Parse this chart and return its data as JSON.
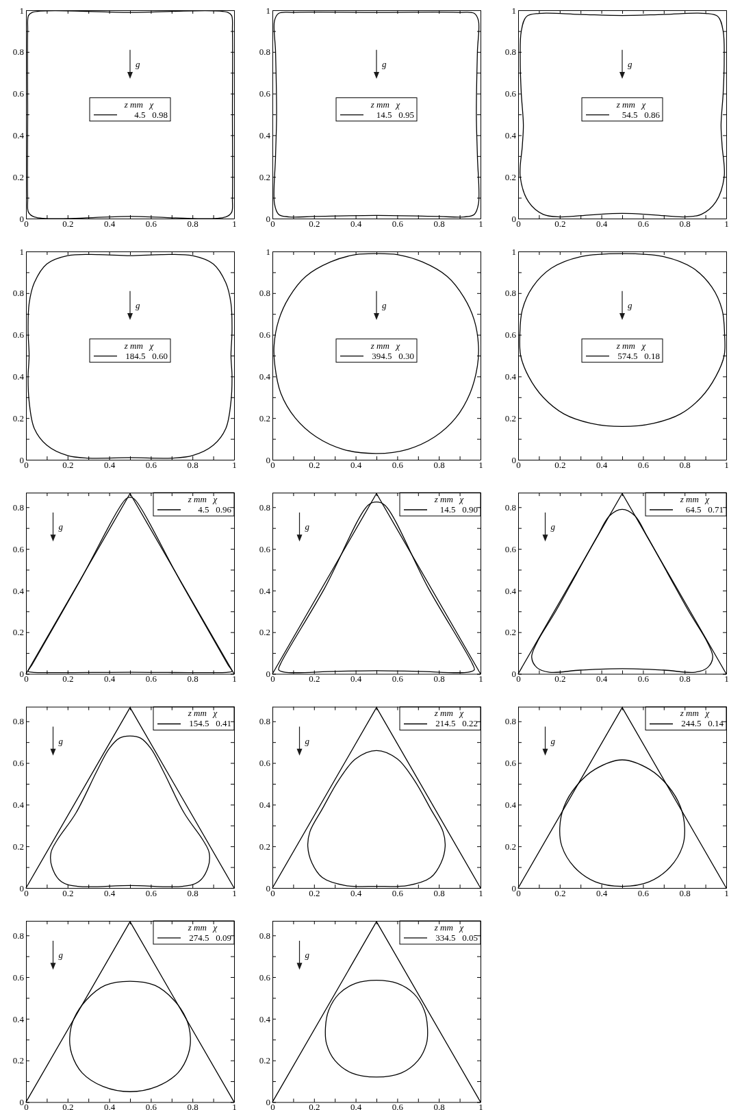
{
  "chart_data": [
    {
      "type": "line",
      "xlim": [
        0,
        1
      ],
      "ylim": [
        0,
        1
      ],
      "xticks": [
        0,
        {
          "value": 0.1,
          "label": null
        },
        0.2,
        {
          "value": 0.3,
          "label": null
        },
        0.4,
        {
          "value": 0.5,
          "label": null
        },
        0.6,
        {
          "value": 0.7,
          "label": null
        },
        0.8,
        {
          "value": 0.9,
          "label": null
        },
        1
      ],
      "yticks": [
        0,
        {
          "value": 0.1,
          "label": null
        },
        0.2,
        {
          "value": 0.3,
          "label": null
        },
        0.4,
        {
          "value": 0.5,
          "label": null
        },
        0.6,
        {
          "value": 0.7,
          "label": null
        },
        0.8,
        {
          "value": 0.9,
          "label": null
        },
        1
      ],
      "annotations": [
        "g",
        "z mm   χ",
        "4.5   0.98"
      ]
    },
    {
      "type": "line",
      "xlim": [
        0,
        1
      ],
      "ylim": [
        0,
        1
      ],
      "xticks": [
        0,
        {
          "value": 0.1,
          "label": null
        },
        0.2,
        {
          "value": 0.3,
          "label": null
        },
        0.4,
        {
          "value": 0.5,
          "label": null
        },
        0.6,
        {
          "value": 0.7,
          "label": null
        },
        0.8,
        {
          "value": 0.9,
          "label": null
        },
        1
      ],
      "yticks": [
        0,
        {
          "value": 0.1,
          "label": null
        },
        0.2,
        {
          "value": 0.3,
          "label": null
        },
        0.4,
        {
          "value": 0.5,
          "label": null
        },
        0.6,
        {
          "value": 0.7,
          "label": null
        },
        0.8,
        {
          "value": 0.9,
          "label": null
        },
        1
      ],
      "annotations": [
        "g",
        "z mm   χ",
        "14.5   0.95"
      ]
    },
    {
      "type": "line",
      "xlim": [
        0,
        1
      ],
      "ylim": [
        0,
        1
      ],
      "xticks": [
        0,
        {
          "value": 0.1,
          "label": null
        },
        0.2,
        {
          "value": 0.3,
          "label": null
        },
        0.4,
        {
          "value": 0.5,
          "label": null
        },
        0.6,
        {
          "value": 0.7,
          "label": null
        },
        0.8,
        {
          "value": 0.9,
          "label": null
        },
        1
      ],
      "yticks": [
        0,
        {
          "value": 0.1,
          "label": null
        },
        0.2,
        {
          "value": 0.3,
          "label": null
        },
        0.4,
        {
          "value": 0.5,
          "label": null
        },
        0.6,
        {
          "value": 0.7,
          "label": null
        },
        0.8,
        {
          "value": 0.9,
          "label": null
        },
        1
      ],
      "annotations": [
        "g",
        "z mm   χ",
        "54.5   0.86"
      ]
    },
    {
      "type": "line",
      "xlim": [
        0,
        1
      ],
      "ylim": [
        0,
        1
      ],
      "xticks": [
        0,
        {
          "value": 0.1,
          "label": null
        },
        0.2,
        {
          "value": 0.3,
          "label": null
        },
        0.4,
        {
          "value": 0.5,
          "label": null
        },
        0.6,
        {
          "value": 0.7,
          "label": null
        },
        0.8,
        {
          "value": 0.9,
          "label": null
        },
        1
      ],
      "yticks": [
        0,
        {
          "value": 0.1,
          "label": null
        },
        0.2,
        {
          "value": 0.3,
          "label": null
        },
        0.4,
        {
          "value": 0.5,
          "label": null
        },
        0.6,
        {
          "value": 0.7,
          "label": null
        },
        0.8,
        {
          "value": 0.9,
          "label": null
        },
        1
      ],
      "annotations": [
        "g",
        "z mm   χ",
        "184.5   0.60"
      ]
    },
    {
      "type": "line",
      "xlim": [
        0,
        1
      ],
      "ylim": [
        0,
        1
      ],
      "xticks": [
        0,
        {
          "value": 0.1,
          "label": null
        },
        0.2,
        {
          "value": 0.3,
          "label": null
        },
        0.4,
        {
          "value": 0.5,
          "label": null
        },
        0.6,
        {
          "value": 0.7,
          "label": null
        },
        0.8,
        {
          "value": 0.9,
          "label": null
        },
        1
      ],
      "yticks": [
        0,
        {
          "value": 0.1,
          "label": null
        },
        0.2,
        {
          "value": 0.3,
          "label": null
        },
        0.4,
        {
          "value": 0.5,
          "label": null
        },
        0.6,
        {
          "value": 0.7,
          "label": null
        },
        0.8,
        {
          "value": 0.9,
          "label": null
        },
        1
      ],
      "annotations": [
        "g",
        "z mm   χ",
        "394.5   0.30"
      ]
    },
    {
      "type": "line",
      "xlim": [
        0,
        1
      ],
      "ylim": [
        0,
        1
      ],
      "xticks": [
        0,
        {
          "value": 0.1,
          "label": null
        },
        0.2,
        {
          "value": 0.3,
          "label": null
        },
        0.4,
        {
          "value": 0.5,
          "label": null
        },
        0.6,
        {
          "value": 0.7,
          "label": null
        },
        0.8,
        {
          "value": 0.9,
          "label": null
        },
        1
      ],
      "yticks": [
        0,
        {
          "value": 0.1,
          "label": null
        },
        0.2,
        {
          "value": 0.3,
          "label": null
        },
        0.4,
        {
          "value": 0.5,
          "label": null
        },
        0.6,
        {
          "value": 0.7,
          "label": null
        },
        0.8,
        {
          "value": 0.9,
          "label": null
        },
        1
      ],
      "annotations": [
        "g",
        "z mm   χ",
        "574.5   0.18"
      ]
    },
    {
      "type": "line",
      "xlim": [
        0,
        1
      ],
      "ylim": [
        0,
        0.87
      ],
      "xticks": [
        0,
        {
          "value": 0.1,
          "label": null
        },
        0.2,
        {
          "value": 0.3,
          "label": null
        },
        0.4,
        {
          "value": 0.5,
          "label": null
        },
        0.6,
        {
          "value": 0.7,
          "label": null
        },
        0.8,
        {
          "value": 0.9,
          "label": null
        },
        1
      ],
      "yticks": [
        0,
        {
          "value": 0.1,
          "label": null
        },
        0.2,
        {
          "value": 0.3,
          "label": null
        },
        0.4,
        {
          "value": 0.5,
          "label": null
        },
        0.6,
        {
          "value": 0.7,
          "label": null
        },
        0.8
      ],
      "annotations": [
        "g",
        "z mm   χ",
        "4.5   0.96"
      ],
      "series": [
        {
          "color": "#000000",
          "x": [
            0,
            0.5,
            1
          ],
          "values": [
            0,
            0.866,
            0
          ]
        }
      ]
    },
    {
      "type": "line",
      "xlim": [
        0,
        1
      ],
      "ylim": [
        0,
        0.87
      ],
      "xticks": [
        0,
        {
          "value": 0.1,
          "label": null
        },
        0.2,
        {
          "value": 0.3,
          "label": null
        },
        0.4,
        {
          "value": 0.5,
          "label": null
        },
        0.6,
        {
          "value": 0.7,
          "label": null
        },
        0.8,
        {
          "value": 0.9,
          "label": null
        },
        1
      ],
      "yticks": [
        0,
        {
          "value": 0.1,
          "label": null
        },
        0.2,
        {
          "value": 0.3,
          "label": null
        },
        0.4,
        {
          "value": 0.5,
          "label": null
        },
        0.6,
        {
          "value": 0.7,
          "label": null
        },
        0.8
      ],
      "annotations": [
        "g",
        "z mm   χ",
        "14.5   0.90"
      ],
      "series": [
        {
          "color": "#000000",
          "x": [
            0,
            0.5,
            1
          ],
          "values": [
            0,
            0.866,
            0
          ]
        }
      ]
    },
    {
      "type": "line",
      "xlim": [
        0,
        1
      ],
      "ylim": [
        0,
        0.87
      ],
      "xticks": [
        0,
        {
          "value": 0.1,
          "label": null
        },
        0.2,
        {
          "value": 0.3,
          "label": null
        },
        0.4,
        {
          "value": 0.5,
          "label": null
        },
        0.6,
        {
          "value": 0.7,
          "label": null
        },
        0.8,
        {
          "value": 0.9,
          "label": null
        },
        1
      ],
      "yticks": [
        0,
        {
          "value": 0.1,
          "label": null
        },
        0.2,
        {
          "value": 0.3,
          "label": null
        },
        0.4,
        {
          "value": 0.5,
          "label": null
        },
        0.6,
        {
          "value": 0.7,
          "label": null
        },
        0.8
      ],
      "annotations": [
        "g",
        "z mm   χ",
        "64.5   0.71"
      ],
      "series": [
        {
          "color": "#000000",
          "x": [
            0,
            0.5,
            1
          ],
          "values": [
            0,
            0.866,
            0
          ]
        }
      ]
    },
    {
      "type": "line",
      "xlim": [
        0,
        1
      ],
      "ylim": [
        0,
        0.87
      ],
      "xticks": [
        0,
        {
          "value": 0.1,
          "label": null
        },
        0.2,
        {
          "value": 0.3,
          "label": null
        },
        0.4,
        {
          "value": 0.5,
          "label": null
        },
        0.6,
        {
          "value": 0.7,
          "label": null
        },
        0.8,
        {
          "value": 0.9,
          "label": null
        },
        1
      ],
      "yticks": [
        0,
        {
          "value": 0.1,
          "label": null
        },
        0.2,
        {
          "value": 0.3,
          "label": null
        },
        0.4,
        {
          "value": 0.5,
          "label": null
        },
        0.6,
        {
          "value": 0.7,
          "label": null
        },
        0.8
      ],
      "annotations": [
        "g",
        "z mm   χ",
        "154.5   0.41"
      ],
      "series": [
        {
          "color": "#000000",
          "x": [
            0,
            0.5,
            1
          ],
          "values": [
            0,
            0.866,
            0
          ]
        }
      ]
    },
    {
      "type": "line",
      "xlim": [
        0,
        1
      ],
      "ylim": [
        0,
        0.87
      ],
      "xticks": [
        0,
        {
          "value": 0.1,
          "label": null
        },
        0.2,
        {
          "value": 0.3,
          "label": null
        },
        0.4,
        {
          "value": 0.5,
          "label": null
        },
        0.6,
        {
          "value": 0.7,
          "label": null
        },
        0.8,
        {
          "value": 0.9,
          "label": null
        },
        1
      ],
      "yticks": [
        0,
        {
          "value": 0.1,
          "label": null
        },
        0.2,
        {
          "value": 0.3,
          "label": null
        },
        0.4,
        {
          "value": 0.5,
          "label": null
        },
        0.6,
        {
          "value": 0.7,
          "label": null
        },
        0.8
      ],
      "annotations": [
        "g",
        "z mm   χ",
        "214.5   0.22"
      ],
      "series": [
        {
          "color": "#000000",
          "x": [
            0,
            0.5,
            1
          ],
          "values": [
            0,
            0.866,
            0
          ]
        }
      ]
    },
    {
      "type": "line",
      "xlim": [
        0,
        1
      ],
      "ylim": [
        0,
        0.87
      ],
      "xticks": [
        0,
        {
          "value": 0.1,
          "label": null
        },
        0.2,
        {
          "value": 0.3,
          "label": null
        },
        0.4,
        {
          "value": 0.5,
          "label": null
        },
        0.6,
        {
          "value": 0.7,
          "label": null
        },
        0.8,
        {
          "value": 0.9,
          "label": null
        },
        1
      ],
      "yticks": [
        0,
        {
          "value": 0.1,
          "label": null
        },
        0.2,
        {
          "value": 0.3,
          "label": null
        },
        0.4,
        {
          "value": 0.5,
          "label": null
        },
        0.6,
        {
          "value": 0.7,
          "label": null
        },
        0.8
      ],
      "annotations": [
        "g",
        "z mm   χ",
        "244.5   0.14"
      ],
      "series": [
        {
          "color": "#000000",
          "x": [
            0,
            0.5,
            1
          ],
          "values": [
            0,
            0.866,
            0
          ]
        }
      ]
    },
    {
      "type": "line",
      "xlim": [
        0,
        1
      ],
      "ylim": [
        0,
        0.87
      ],
      "xticks": [
        0,
        {
          "value": 0.1,
          "label": null
        },
        0.2,
        {
          "value": 0.3,
          "label": null
        },
        0.4,
        {
          "value": 0.5,
          "label": null
        },
        0.6,
        {
          "value": 0.7,
          "label": null
        },
        0.8,
        {
          "value": 0.9,
          "label": null
        },
        1
      ],
      "yticks": [
        0,
        {
          "value": 0.1,
          "label": null
        },
        0.2,
        {
          "value": 0.3,
          "label": null
        },
        0.4,
        {
          "value": 0.5,
          "label": null
        },
        0.6,
        {
          "value": 0.7,
          "label": null
        },
        0.8
      ],
      "annotations": [
        "g",
        "z mm   χ",
        "274.5   0.09"
      ],
      "series": [
        {
          "color": "#000000",
          "x": [
            0,
            0.5,
            1
          ],
          "values": [
            0,
            0.866,
            0
          ]
        }
      ]
    },
    {
      "type": "line",
      "xlim": [
        0,
        1
      ],
      "ylim": [
        0,
        0.87
      ],
      "xticks": [
        0,
        {
          "value": 0.1,
          "label": null
        },
        0.2,
        {
          "value": 0.3,
          "label": null
        },
        0.4,
        {
          "value": 0.5,
          "label": null
        },
        0.6,
        {
          "value": 0.7,
          "label": null
        },
        0.8,
        {
          "value": 0.9,
          "label": null
        },
        1
      ],
      "yticks": [
        0,
        {
          "value": 0.1,
          "label": null
        },
        0.2,
        {
          "value": 0.3,
          "label": null
        },
        0.4,
        {
          "value": 0.5,
          "label": null
        },
        0.6,
        {
          "value": 0.7,
          "label": null
        },
        0.8
      ],
      "annotations": [
        "g",
        "z mm   χ",
        "334.5   0.05"
      ],
      "series": [
        {
          "color": "#000000",
          "x": [
            0,
            0.5,
            1
          ],
          "values": [
            0,
            0.866,
            0
          ]
        }
      ]
    }
  ]
}
